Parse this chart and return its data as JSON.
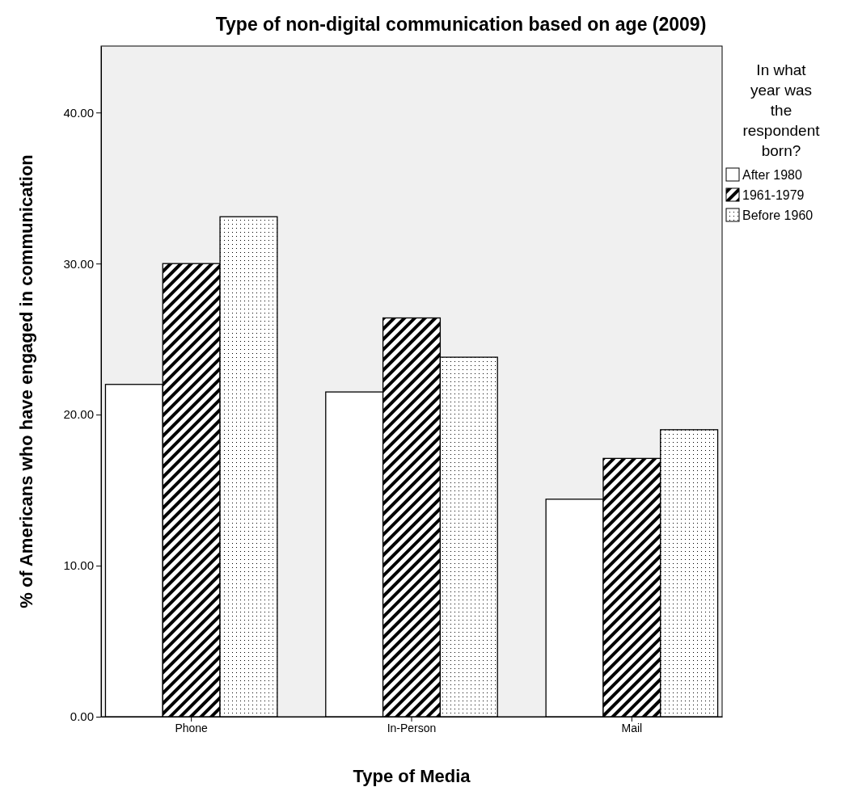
{
  "chart_data": {
    "type": "bar",
    "title": "Type of non-digital communication based on age (2009)",
    "xlabel": "Type of Media",
    "ylabel": "% of Americans who have engaged in communication",
    "legend_title": "In what year was the respondent born?",
    "categories": [
      "Phone",
      "In-Person",
      "Mail"
    ],
    "series": [
      {
        "name": "After 1980",
        "color": "#ffffff",
        "values": [
          22.0,
          21.5,
          14.4
        ]
      },
      {
        "name": "1961-1979",
        "color": "#000000",
        "values": [
          30.0,
          26.4,
          17.1
        ]
      },
      {
        "name": "Before 1960",
        "color": "#000000",
        "values": [
          33.1,
          23.8,
          19.0
        ]
      }
    ],
    "ylim": [
      0,
      44.4
    ],
    "yticks": [
      {
        "value": 0,
        "label": "0.00"
      },
      {
        "value": 10,
        "label": "10.00"
      },
      {
        "value": 20,
        "label": "20.00"
      },
      {
        "value": 30,
        "label": "30.00"
      },
      {
        "value": 40,
        "label": "40.00"
      }
    ],
    "grid": false,
    "legend": "top right"
  }
}
